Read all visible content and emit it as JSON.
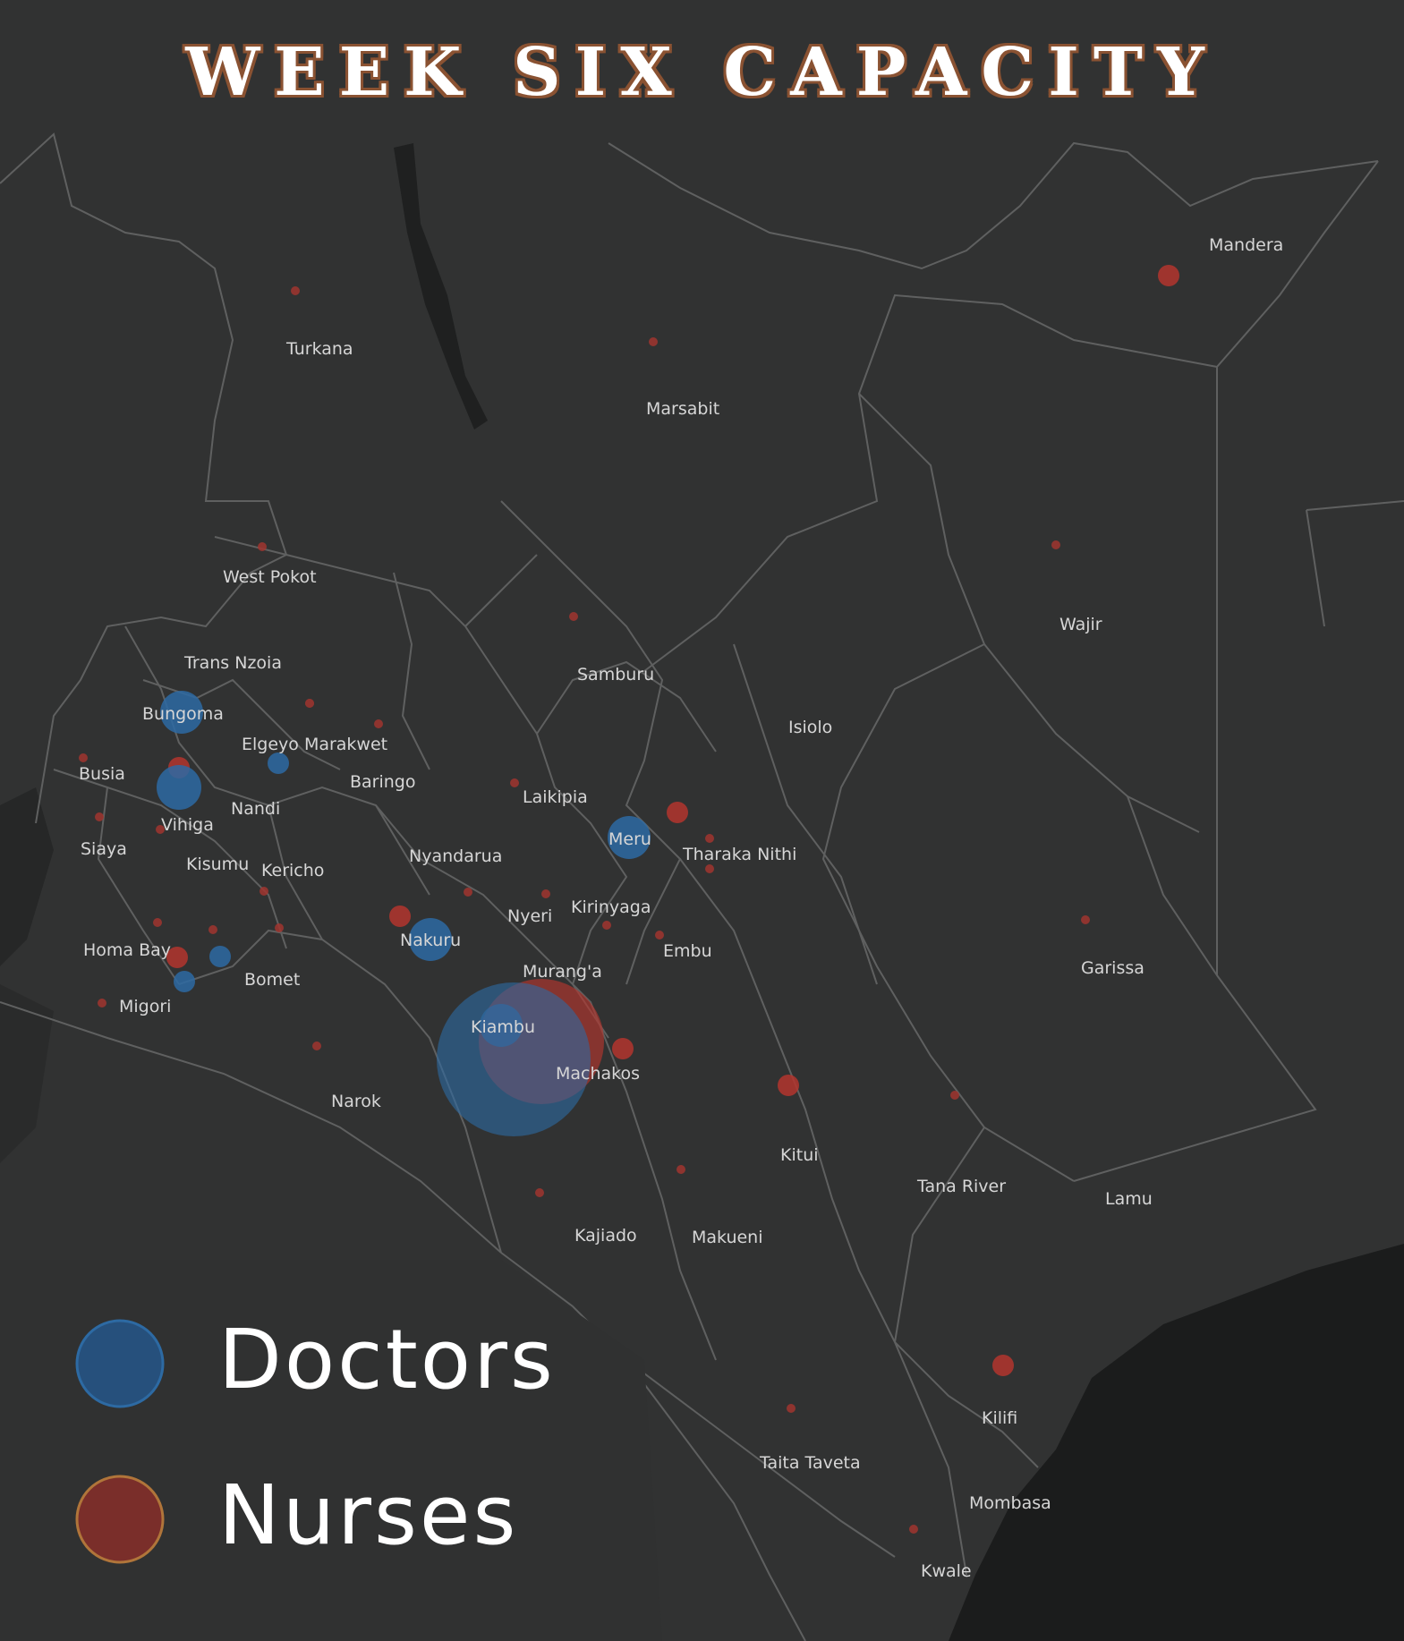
{
  "title": "WEEK SIX CAPACITY",
  "legend": {
    "doctors_label": "Doctors",
    "nurses_label": "Nurses"
  },
  "colors": {
    "background": "#2f3030",
    "land": "#313232",
    "borders": "#5c5d5d",
    "sea": "#222323",
    "doctors": "#2d6aa3",
    "nurses": "#b3352e",
    "title_outline": "#8a5232"
  },
  "counties": [
    "Mandera",
    "Turkana",
    "Marsabit",
    "Wajir",
    "West Pokot",
    "Samburu",
    "Trans Nzoia",
    "Isiolo",
    "Bungoma",
    "Elgeyo Marakwet",
    "Busia",
    "Baringo",
    "Laikipia",
    "Vihiga",
    "Nandi",
    "Meru",
    "Siaya",
    "Kisumu",
    "Kericho",
    "Nyandarua",
    "Tharaka Nithi",
    "Kirinyaga",
    "Nyeri",
    "Nakuru",
    "Embu",
    "Homa Bay",
    "Bomet",
    "Murang'a",
    "Garissa",
    "Migori",
    "Kiambu",
    "Machakos",
    "Narok",
    "Kitui",
    "Tana River",
    "Lamu",
    "Kajiado",
    "Makueni",
    "Kilifi",
    "Taita Taveta",
    "Mombasa",
    "Kwale"
  ],
  "capacity_markers": [
    {
      "county": "Kiambu",
      "doctors": "large",
      "nurses": "large"
    },
    {
      "county": "Bungoma",
      "doctors": "medium"
    },
    {
      "county": "Vihiga",
      "doctors": "medium",
      "nurses": "small"
    },
    {
      "county": "Meru",
      "doctors": "medium",
      "nurses": "small"
    },
    {
      "county": "Nakuru",
      "doctors": "medium",
      "nurses": "small"
    },
    {
      "county": "Mandera",
      "nurses": "small"
    },
    {
      "county": "Machakos",
      "nurses": "small"
    },
    {
      "county": "Kitui",
      "nurses": "small"
    },
    {
      "county": "Kilifi",
      "nurses": "small"
    },
    {
      "county": "Homa Bay",
      "doctors": "small",
      "nurses": "small"
    }
  ]
}
